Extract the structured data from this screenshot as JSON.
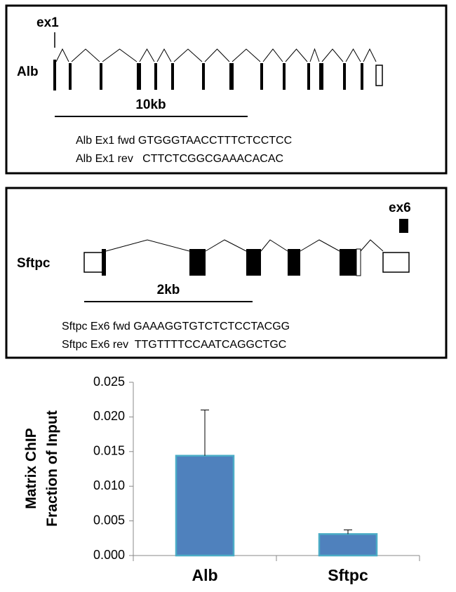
{
  "panels": [
    {
      "exon_label": "ex1",
      "gene": "Alb",
      "scale": "10kb",
      "primers": [
        "Alb Ex1 fwd GTGGGTAACCTTTCTCCTCC",
        "Alb Ex1 rev   CTTCTCGGCGAAACACAC"
      ]
    },
    {
      "exon_label": "ex6",
      "gene": "Sftpc",
      "scale": "2kb",
      "primers": [
        "Sftpc Ex6 fwd GAAAGGTGTCTCTCCTACGG",
        "Sftpc Ex6 rev  TTGTTTTCCAATCAGGCTGC"
      ]
    }
  ],
  "chart_data": {
    "type": "bar",
    "ylabel": [
      "Matrix ChIP",
      "Fraction of Input"
    ],
    "categories": [
      "Alb",
      "Sftpc"
    ],
    "values": [
      0.0144,
      0.0031
    ],
    "errors": [
      0.0066,
      0.0006
    ],
    "color": "#4f81bd",
    "edge_color": "#4bacc6",
    "ylim": [
      0,
      0.025
    ],
    "yticks": [
      {
        "value": 0,
        "label": "0.000"
      },
      0.005,
      {
        "value": 0.01,
        "label": "0.010"
      },
      0.015,
      {
        "value": 0.02,
        "label": "0.020"
      },
      0.025
    ]
  }
}
